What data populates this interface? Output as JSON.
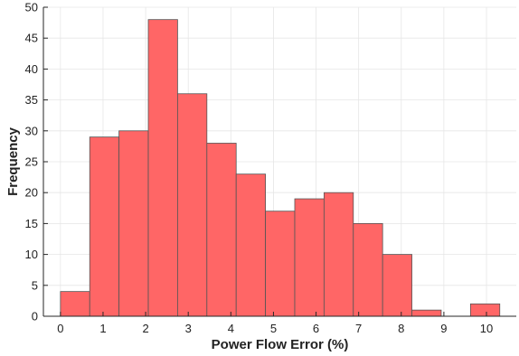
{
  "chart_data": {
    "type": "bar",
    "title": "",
    "xlabel": "Power Flow Error (%)",
    "ylabel": "Frequency",
    "bin_edges": [
      0,
      0.6875,
      1.375,
      2.0625,
      2.75,
      3.4375,
      4.125,
      4.8125,
      5.5,
      6.1875,
      6.875,
      7.5625,
      8.25,
      8.9375,
      9.625,
      10.3125
    ],
    "values": [
      4,
      29,
      30,
      48,
      36,
      28,
      23,
      17,
      19,
      20,
      15,
      10,
      1,
      0,
      2
    ],
    "xlim": [
      -0.4,
      10.7
    ],
    "ylim": [
      0,
      50
    ],
    "xticks": [
      0,
      1,
      2,
      3,
      4,
      5,
      6,
      7,
      8,
      9,
      10
    ],
    "yticks": [
      0,
      5,
      10,
      15,
      20,
      25,
      30,
      35,
      40,
      45,
      50
    ],
    "grid": true,
    "bar_color": "#ff6666",
    "bar_edge_color": "#555555"
  }
}
